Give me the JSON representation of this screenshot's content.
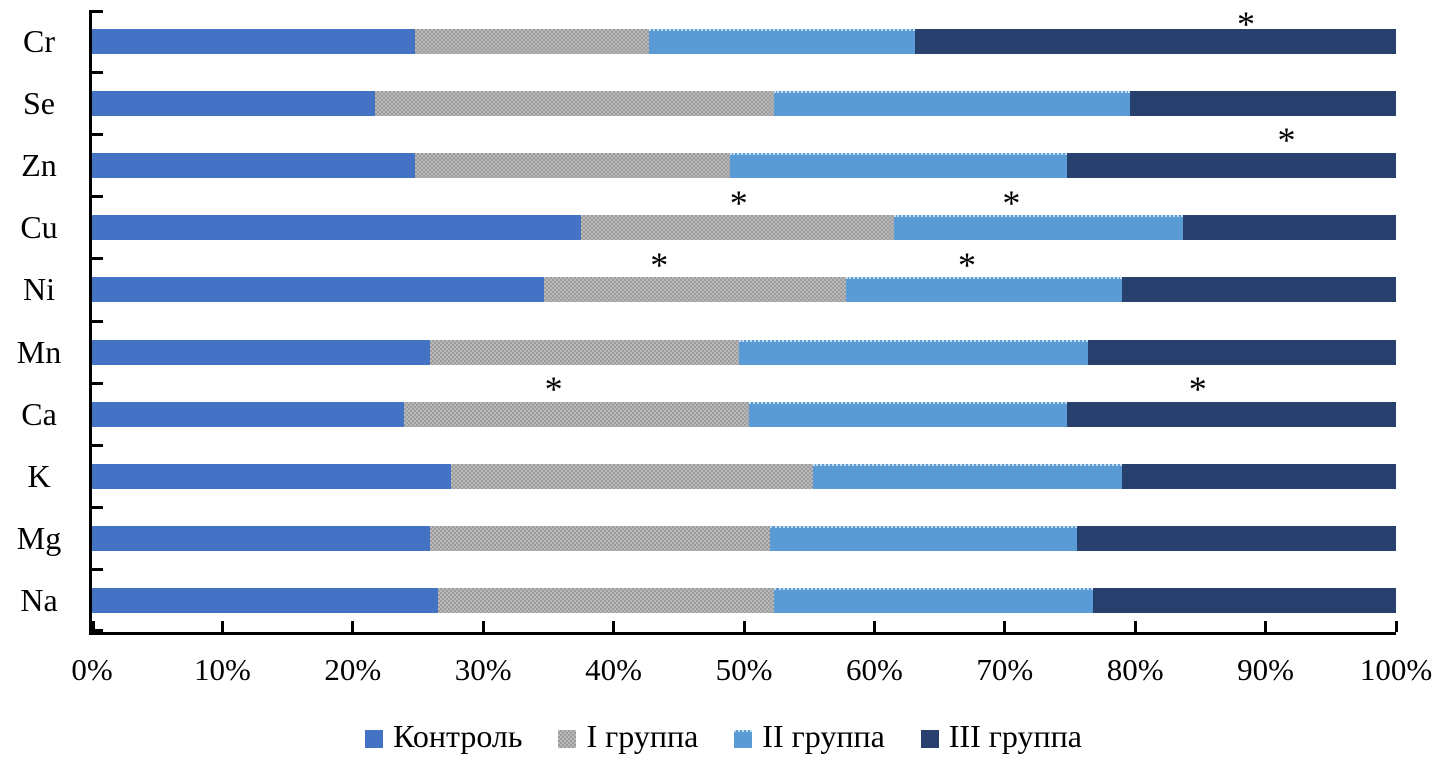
{
  "chart_data": {
    "type": "bar",
    "orientation": "horizontal",
    "stacked": true,
    "stack_total": 100,
    "unit": "%",
    "grid": false,
    "categories": [
      "Cr",
      "Se",
      "Zn",
      "Cu",
      "Ni",
      "Mn",
      "Ca",
      "K",
      "Mg",
      "Na"
    ],
    "series": [
      {
        "key": "control",
        "name": "Контроль",
        "color": "#4472C4",
        "fill_pattern": "solid",
        "values": [
          24.8,
          21.7,
          24.8,
          37.5,
          34.7,
          25.9,
          23.9,
          27.5,
          25.9,
          26.5
        ]
      },
      {
        "key": "group1",
        "name": "I группа",
        "color": "#ADADAD",
        "fill_pattern": "dotted-gray",
        "values": [
          17.9,
          30.6,
          24.1,
          24.0,
          23.1,
          23.7,
          26.5,
          27.8,
          26.1,
          25.8
        ]
      },
      {
        "key": "group2",
        "name": "II группа",
        "color": "#5B9BD5",
        "fill_pattern": "solid-dotted-top-edge",
        "values": [
          20.4,
          27.3,
          25.9,
          22.2,
          21.2,
          26.8,
          24.4,
          23.7,
          23.5,
          24.5
        ]
      },
      {
        "key": "group3",
        "name": "III группа",
        "color": "#28406E",
        "fill_pattern": "solid",
        "values": [
          36.9,
          20.4,
          25.2,
          16.3,
          21.0,
          23.6,
          25.2,
          21.0,
          24.5,
          23.2
        ]
      }
    ],
    "x_axis": {
      "min": 0,
      "max": 100,
      "tick_step": 10,
      "tick_labels": [
        "0%",
        "10%",
        "20%",
        "30%",
        "40%",
        "50%",
        "60%",
        "70%",
        "80%",
        "90%",
        "100%"
      ],
      "tick_mark_side": "inside"
    },
    "y_axis": {
      "tick_mark_side": "inside",
      "tick_count": 11
    },
    "annotations": [
      {
        "category": "Cr",
        "x_pct": 88.5,
        "symbol": "*"
      },
      {
        "category": "Zn",
        "x_pct": 91.6,
        "symbol": "*"
      },
      {
        "category": "Cu",
        "x_pct": 49.6,
        "symbol": "*"
      },
      {
        "category": "Cu",
        "x_pct": 70.5,
        "symbol": "*"
      },
      {
        "category": "Ni",
        "x_pct": 43.5,
        "symbol": "*"
      },
      {
        "category": "Ni",
        "x_pct": 67.1,
        "symbol": "*"
      },
      {
        "category": "Ca",
        "x_pct": 35.4,
        "symbol": "*"
      },
      {
        "category": "Ca",
        "x_pct": 84.8,
        "symbol": "*"
      }
    ],
    "legend": {
      "position": "bottom",
      "items": [
        "Контроль",
        "I группа",
        "II группа",
        "III группа"
      ]
    }
  }
}
